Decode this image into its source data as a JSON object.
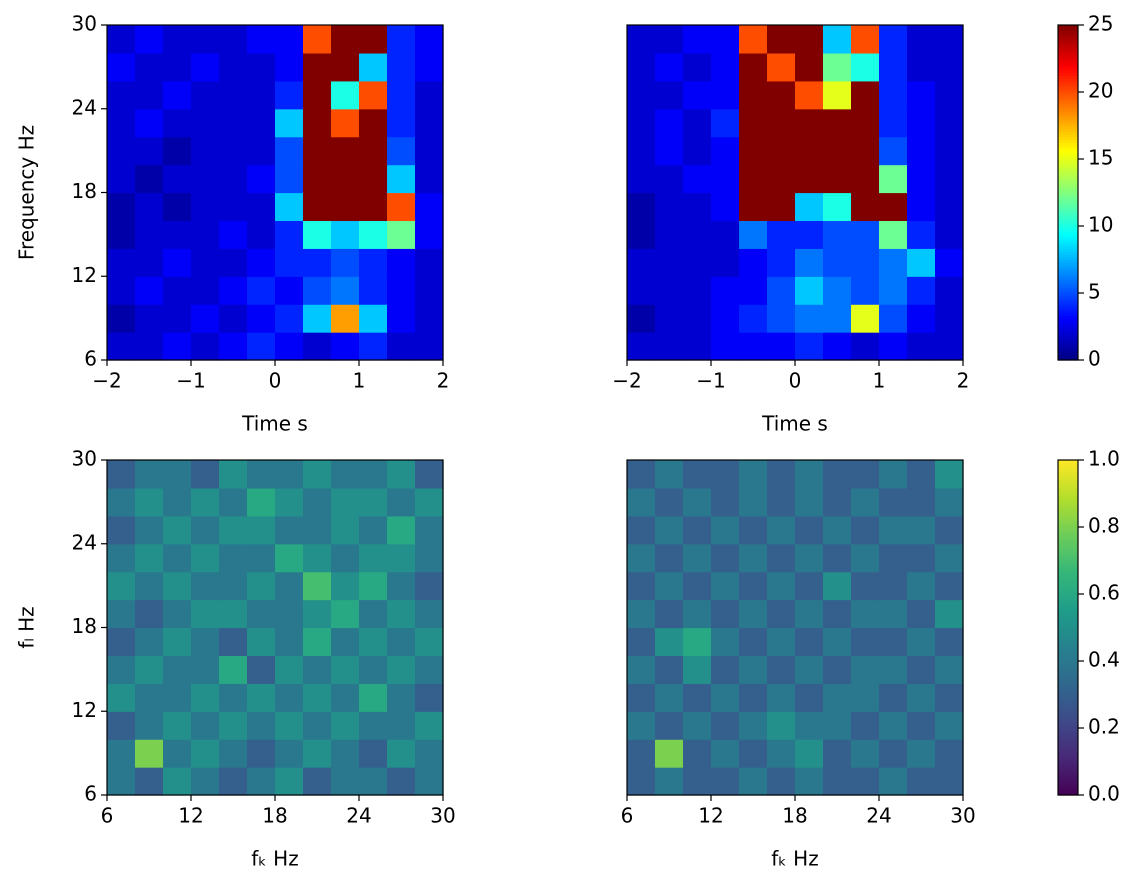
{
  "chart_data": [
    {
      "type": "heatmap",
      "colormap": "jet",
      "zlim": [
        0,
        25
      ],
      "xlim": [
        -2,
        2
      ],
      "ylim": [
        6,
        30
      ],
      "xticks": [
        {
          "value": -2,
          "label": "−2"
        },
        {
          "value": -1,
          "label": "−1"
        },
        0,
        1,
        2
      ],
      "yticks": [
        6,
        12,
        18,
        24,
        30
      ],
      "xlabel": "Time s",
      "ylabel": "Frequency Hz",
      "z": [
        [
          2,
          2,
          3,
          2,
          3,
          4,
          3,
          2,
          3,
          4,
          2,
          2
        ],
        [
          1,
          2,
          2,
          3,
          2,
          3,
          4,
          8,
          18,
          8,
          3,
          2
        ],
        [
          2,
          3,
          2,
          2,
          3,
          4,
          3,
          5,
          6,
          4,
          3,
          2
        ],
        [
          2,
          2,
          3,
          2,
          2,
          3,
          4,
          4,
          5,
          4,
          3,
          2
        ],
        [
          1,
          2,
          2,
          2,
          3,
          2,
          4,
          10,
          8,
          10,
          12,
          3
        ],
        [
          1,
          2,
          1,
          2,
          2,
          2,
          8,
          25,
          25,
          25,
          20,
          3
        ],
        [
          2,
          1,
          2,
          2,
          2,
          3,
          5,
          25,
          25,
          25,
          8,
          2
        ],
        [
          2,
          2,
          1,
          2,
          2,
          2,
          5,
          25,
          25,
          25,
          5,
          2
        ],
        [
          2,
          3,
          2,
          2,
          2,
          2,
          8,
          25,
          20,
          25,
          4,
          2
        ],
        [
          2,
          2,
          3,
          2,
          2,
          2,
          4,
          25,
          10,
          20,
          4,
          2
        ],
        [
          3,
          2,
          2,
          3,
          2,
          2,
          3,
          25,
          25,
          8,
          4,
          3
        ],
        [
          2,
          3,
          2,
          2,
          2,
          3,
          3,
          20,
          25,
          25,
          4,
          3
        ]
      ]
    },
    {
      "type": "heatmap",
      "colormap": "jet",
      "zlim": [
        0,
        25
      ],
      "xlim": [
        -2,
        2
      ],
      "ylim": [
        6,
        30
      ],
      "xticks": [
        {
          "value": -2,
          "label": "−2"
        },
        {
          "value": -1,
          "label": "−1"
        },
        0,
        1,
        2
      ],
      "xlabel": "Time s",
      "colorbar_ticks": [
        0,
        5,
        10,
        15,
        20,
        25
      ],
      "z": [
        [
          2,
          2,
          2,
          3,
          3,
          3,
          4,
          3,
          2,
          3,
          2,
          2
        ],
        [
          1,
          2,
          2,
          3,
          4,
          5,
          6,
          6,
          15,
          5,
          3,
          2
        ],
        [
          2,
          2,
          2,
          3,
          3,
          5,
          8,
          6,
          5,
          6,
          4,
          2
        ],
        [
          2,
          2,
          2,
          2,
          3,
          4,
          6,
          5,
          5,
          6,
          8,
          3
        ],
        [
          1,
          2,
          2,
          2,
          6,
          4,
          4,
          5,
          5,
          12,
          4,
          2
        ],
        [
          1,
          2,
          2,
          3,
          25,
          25,
          8,
          10,
          25,
          25,
          3,
          2
        ],
        [
          2,
          2,
          3,
          3,
          25,
          25,
          25,
          25,
          25,
          12,
          3,
          2
        ],
        [
          2,
          3,
          2,
          3,
          25,
          25,
          25,
          25,
          25,
          5,
          3,
          2
        ],
        [
          2,
          3,
          2,
          4,
          25,
          25,
          25,
          25,
          25,
          4,
          3,
          2
        ],
        [
          2,
          2,
          3,
          3,
          25,
          25,
          20,
          15,
          25,
          4,
          3,
          2
        ],
        [
          2,
          3,
          2,
          3,
          25,
          20,
          25,
          12,
          10,
          4,
          2,
          2
        ],
        [
          2,
          2,
          3,
          3,
          20,
          25,
          25,
          8,
          20,
          4,
          2,
          2
        ]
      ]
    },
    {
      "type": "heatmap",
      "colormap": "viridis",
      "zlim": [
        0,
        1
      ],
      "xlim": [
        6,
        30
      ],
      "ylim": [
        6,
        30
      ],
      "xticks": [
        6,
        12,
        18,
        24,
        30
      ],
      "yticks": [
        6,
        12,
        18,
        24,
        30
      ],
      "xlabel": "fₖ Hz",
      "ylabel": "fₗ Hz",
      "z": [
        [
          0.4,
          0.3,
          0.5,
          0.4,
          0.3,
          0.4,
          0.5,
          0.3,
          0.4,
          0.4,
          0.3,
          0.4
        ],
        [
          0.4,
          0.8,
          0.4,
          0.5,
          0.4,
          0.3,
          0.4,
          0.5,
          0.4,
          0.3,
          0.5,
          0.4
        ],
        [
          0.3,
          0.4,
          0.5,
          0.4,
          0.5,
          0.4,
          0.5,
          0.4,
          0.5,
          0.4,
          0.4,
          0.5
        ],
        [
          0.5,
          0.4,
          0.4,
          0.5,
          0.4,
          0.5,
          0.4,
          0.5,
          0.4,
          0.6,
          0.4,
          0.3
        ],
        [
          0.4,
          0.5,
          0.4,
          0.4,
          0.6,
          0.3,
          0.5,
          0.4,
          0.5,
          0.4,
          0.5,
          0.4
        ],
        [
          0.3,
          0.4,
          0.5,
          0.4,
          0.3,
          0.5,
          0.4,
          0.6,
          0.4,
          0.5,
          0.4,
          0.5
        ],
        [
          0.4,
          0.3,
          0.4,
          0.5,
          0.5,
          0.4,
          0.4,
          0.5,
          0.6,
          0.4,
          0.5,
          0.4
        ],
        [
          0.5,
          0.4,
          0.5,
          0.4,
          0.4,
          0.5,
          0.4,
          0.7,
          0.5,
          0.6,
          0.4,
          0.3
        ],
        [
          0.4,
          0.5,
          0.4,
          0.5,
          0.4,
          0.4,
          0.6,
          0.5,
          0.4,
          0.5,
          0.5,
          0.4
        ],
        [
          0.3,
          0.4,
          0.5,
          0.4,
          0.5,
          0.5,
          0.4,
          0.4,
          0.5,
          0.4,
          0.6,
          0.4
        ],
        [
          0.4,
          0.5,
          0.4,
          0.5,
          0.4,
          0.6,
          0.5,
          0.4,
          0.5,
          0.5,
          0.4,
          0.5
        ],
        [
          0.3,
          0.4,
          0.4,
          0.3,
          0.5,
          0.4,
          0.4,
          0.5,
          0.4,
          0.4,
          0.5,
          0.3
        ]
      ]
    },
    {
      "type": "heatmap",
      "colormap": "viridis",
      "zlim": [
        0,
        1
      ],
      "xlim": [
        6,
        30
      ],
      "ylim": [
        6,
        30
      ],
      "xticks": [
        6,
        12,
        18,
        24,
        30
      ],
      "xlabel": "fₖ Hz",
      "colorbar_ticks": [
        {
          "value": 0,
          "label": "0.0"
        },
        0.2,
        0.4,
        0.6,
        0.8,
        {
          "value": 1,
          "label": "1.0"
        }
      ],
      "z": [
        [
          0.3,
          0.4,
          0.3,
          0.3,
          0.4,
          0.3,
          0.4,
          0.3,
          0.3,
          0.4,
          0.3,
          0.3
        ],
        [
          0.3,
          0.8,
          0.3,
          0.4,
          0.3,
          0.4,
          0.5,
          0.3,
          0.4,
          0.3,
          0.4,
          0.3
        ],
        [
          0.4,
          0.3,
          0.4,
          0.3,
          0.4,
          0.5,
          0.4,
          0.4,
          0.3,
          0.4,
          0.3,
          0.4
        ],
        [
          0.3,
          0.4,
          0.3,
          0.4,
          0.3,
          0.4,
          0.3,
          0.4,
          0.4,
          0.3,
          0.4,
          0.3
        ],
        [
          0.4,
          0.3,
          0.5,
          0.3,
          0.4,
          0.3,
          0.4,
          0.3,
          0.4,
          0.4,
          0.3,
          0.4
        ],
        [
          0.3,
          0.5,
          0.6,
          0.4,
          0.3,
          0.4,
          0.3,
          0.4,
          0.3,
          0.3,
          0.4,
          0.3
        ],
        [
          0.4,
          0.3,
          0.4,
          0.3,
          0.4,
          0.3,
          0.4,
          0.3,
          0.4,
          0.4,
          0.3,
          0.5
        ],
        [
          0.3,
          0.4,
          0.3,
          0.4,
          0.3,
          0.4,
          0.3,
          0.5,
          0.3,
          0.3,
          0.4,
          0.3
        ],
        [
          0.4,
          0.3,
          0.4,
          0.3,
          0.4,
          0.3,
          0.4,
          0.3,
          0.4,
          0.3,
          0.3,
          0.4
        ],
        [
          0.3,
          0.4,
          0.3,
          0.4,
          0.3,
          0.4,
          0.3,
          0.4,
          0.3,
          0.4,
          0.4,
          0.3
        ],
        [
          0.4,
          0.3,
          0.4,
          0.3,
          0.4,
          0.3,
          0.4,
          0.3,
          0.4,
          0.3,
          0.3,
          0.4
        ],
        [
          0.3,
          0.4,
          0.3,
          0.3,
          0.4,
          0.3,
          0.4,
          0.3,
          0.3,
          0.4,
          0.3,
          0.5
        ]
      ]
    }
  ]
}
